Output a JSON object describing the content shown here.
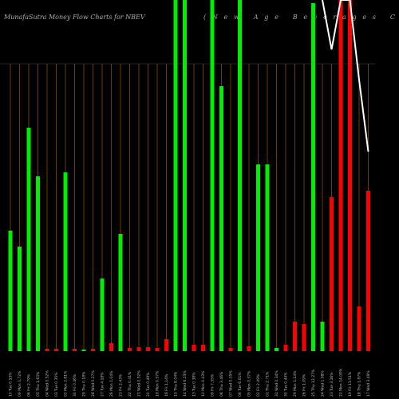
{
  "chart_data": {
    "type": "bar",
    "title": "MunafaSutra  Money Flow  Charts for NBEV",
    "subtitle": "(New Age Beverages C",
    "categories": [
      "10 Tue 0.53%",
      "09 Mon 1.72%",
      "06 Fri 2.79%",
      "05 Thu 1.63%",
      "04 Wed 0.52%",
      "03 Tue 0.35%",
      "02 Mon 2.81%",
      "30 Fri 0.46%",
      "29 Thu 0.18%",
      "28 Wed 0.27%",
      "27 Tue 4.18%",
      "26 Mon 1.04%",
      "23 Fri 2.43%",
      "22 Thu 0.41%",
      "21 Wed 0.52%",
      "20 Tue 0.49%",
      "19 Mon 0.57%",
      "16 Fri 1.14%",
      "15 Thu 8.04%",
      "14 Wed 6.23%",
      "13 Tue 0.38%",
      "12 Mon 0.43%",
      "09 Fri 7.35%",
      "08 Thu 3.46%",
      "07 Wed 0.35%",
      "06 Tue 6.01%",
      "05 Mon 0.37%",
      "02 Fri 2.49%",
      "01 Thu 2.71%",
      "31 Wed 0.34%",
      "30 Tue 0.44%",
      "29 Mon 1.14%",
      "26 Fri 1.09%",
      "25 Thu 12.27%",
      "24 Wed 1.08%",
      "23 Tue 3.16%",
      "22 Mon 14.08%",
      "19 Fri 11.51%",
      "18 Thu 1.87%",
      "17 Wed 3.49%"
    ],
    "values": [
      151,
      131,
      280,
      219,
      3,
      3,
      224,
      3,
      2,
      3,
      91,
      10,
      147,
      4,
      5,
      5,
      4,
      15,
      440,
      440,
      8,
      8,
      440,
      332,
      4,
      440,
      6,
      234,
      234,
      4,
      8,
      37,
      34,
      436,
      37,
      193,
      440,
      440,
      56,
      201
    ],
    "colors": [
      "#00ee00",
      "#00ee00",
      "#00ee00",
      "#00ee00",
      "#ff0000",
      "#ff0000",
      "#00ee00",
      "#ff0000",
      "#00ee00",
      "#ff0000",
      "#00ee00",
      "#ff0000",
      "#00ee00",
      "#ff0000",
      "#ff0000",
      "#ff0000",
      "#ff0000",
      "#ff0000",
      "#00ee00",
      "#00ee00",
      "#ff0000",
      "#ff0000",
      "#00ee00",
      "#00ee00",
      "#ff0000",
      "#00ee00",
      "#ff0000",
      "#00ee00",
      "#00ee00",
      "#00ee00",
      "#ff0000",
      "#ff0000",
      "#ff0000",
      "#00ee00",
      "#00ee00",
      "#ff0000",
      "#ff0000",
      "#ff0000",
      "#ff0000",
      "#ff0000"
    ],
    "line": {
      "color": "#ffffff",
      "values": [
        null,
        null,
        null,
        null,
        null,
        null,
        null,
        null,
        null,
        null,
        null,
        null,
        null,
        null,
        null,
        null,
        null,
        null,
        null,
        null,
        null,
        null,
        null,
        null,
        null,
        null,
        null,
        null,
        null,
        null,
        null,
        null,
        null,
        null,
        440,
        378,
        440,
        440,
        340,
        250
      ]
    },
    "ylim": [
      0,
      440
    ]
  }
}
